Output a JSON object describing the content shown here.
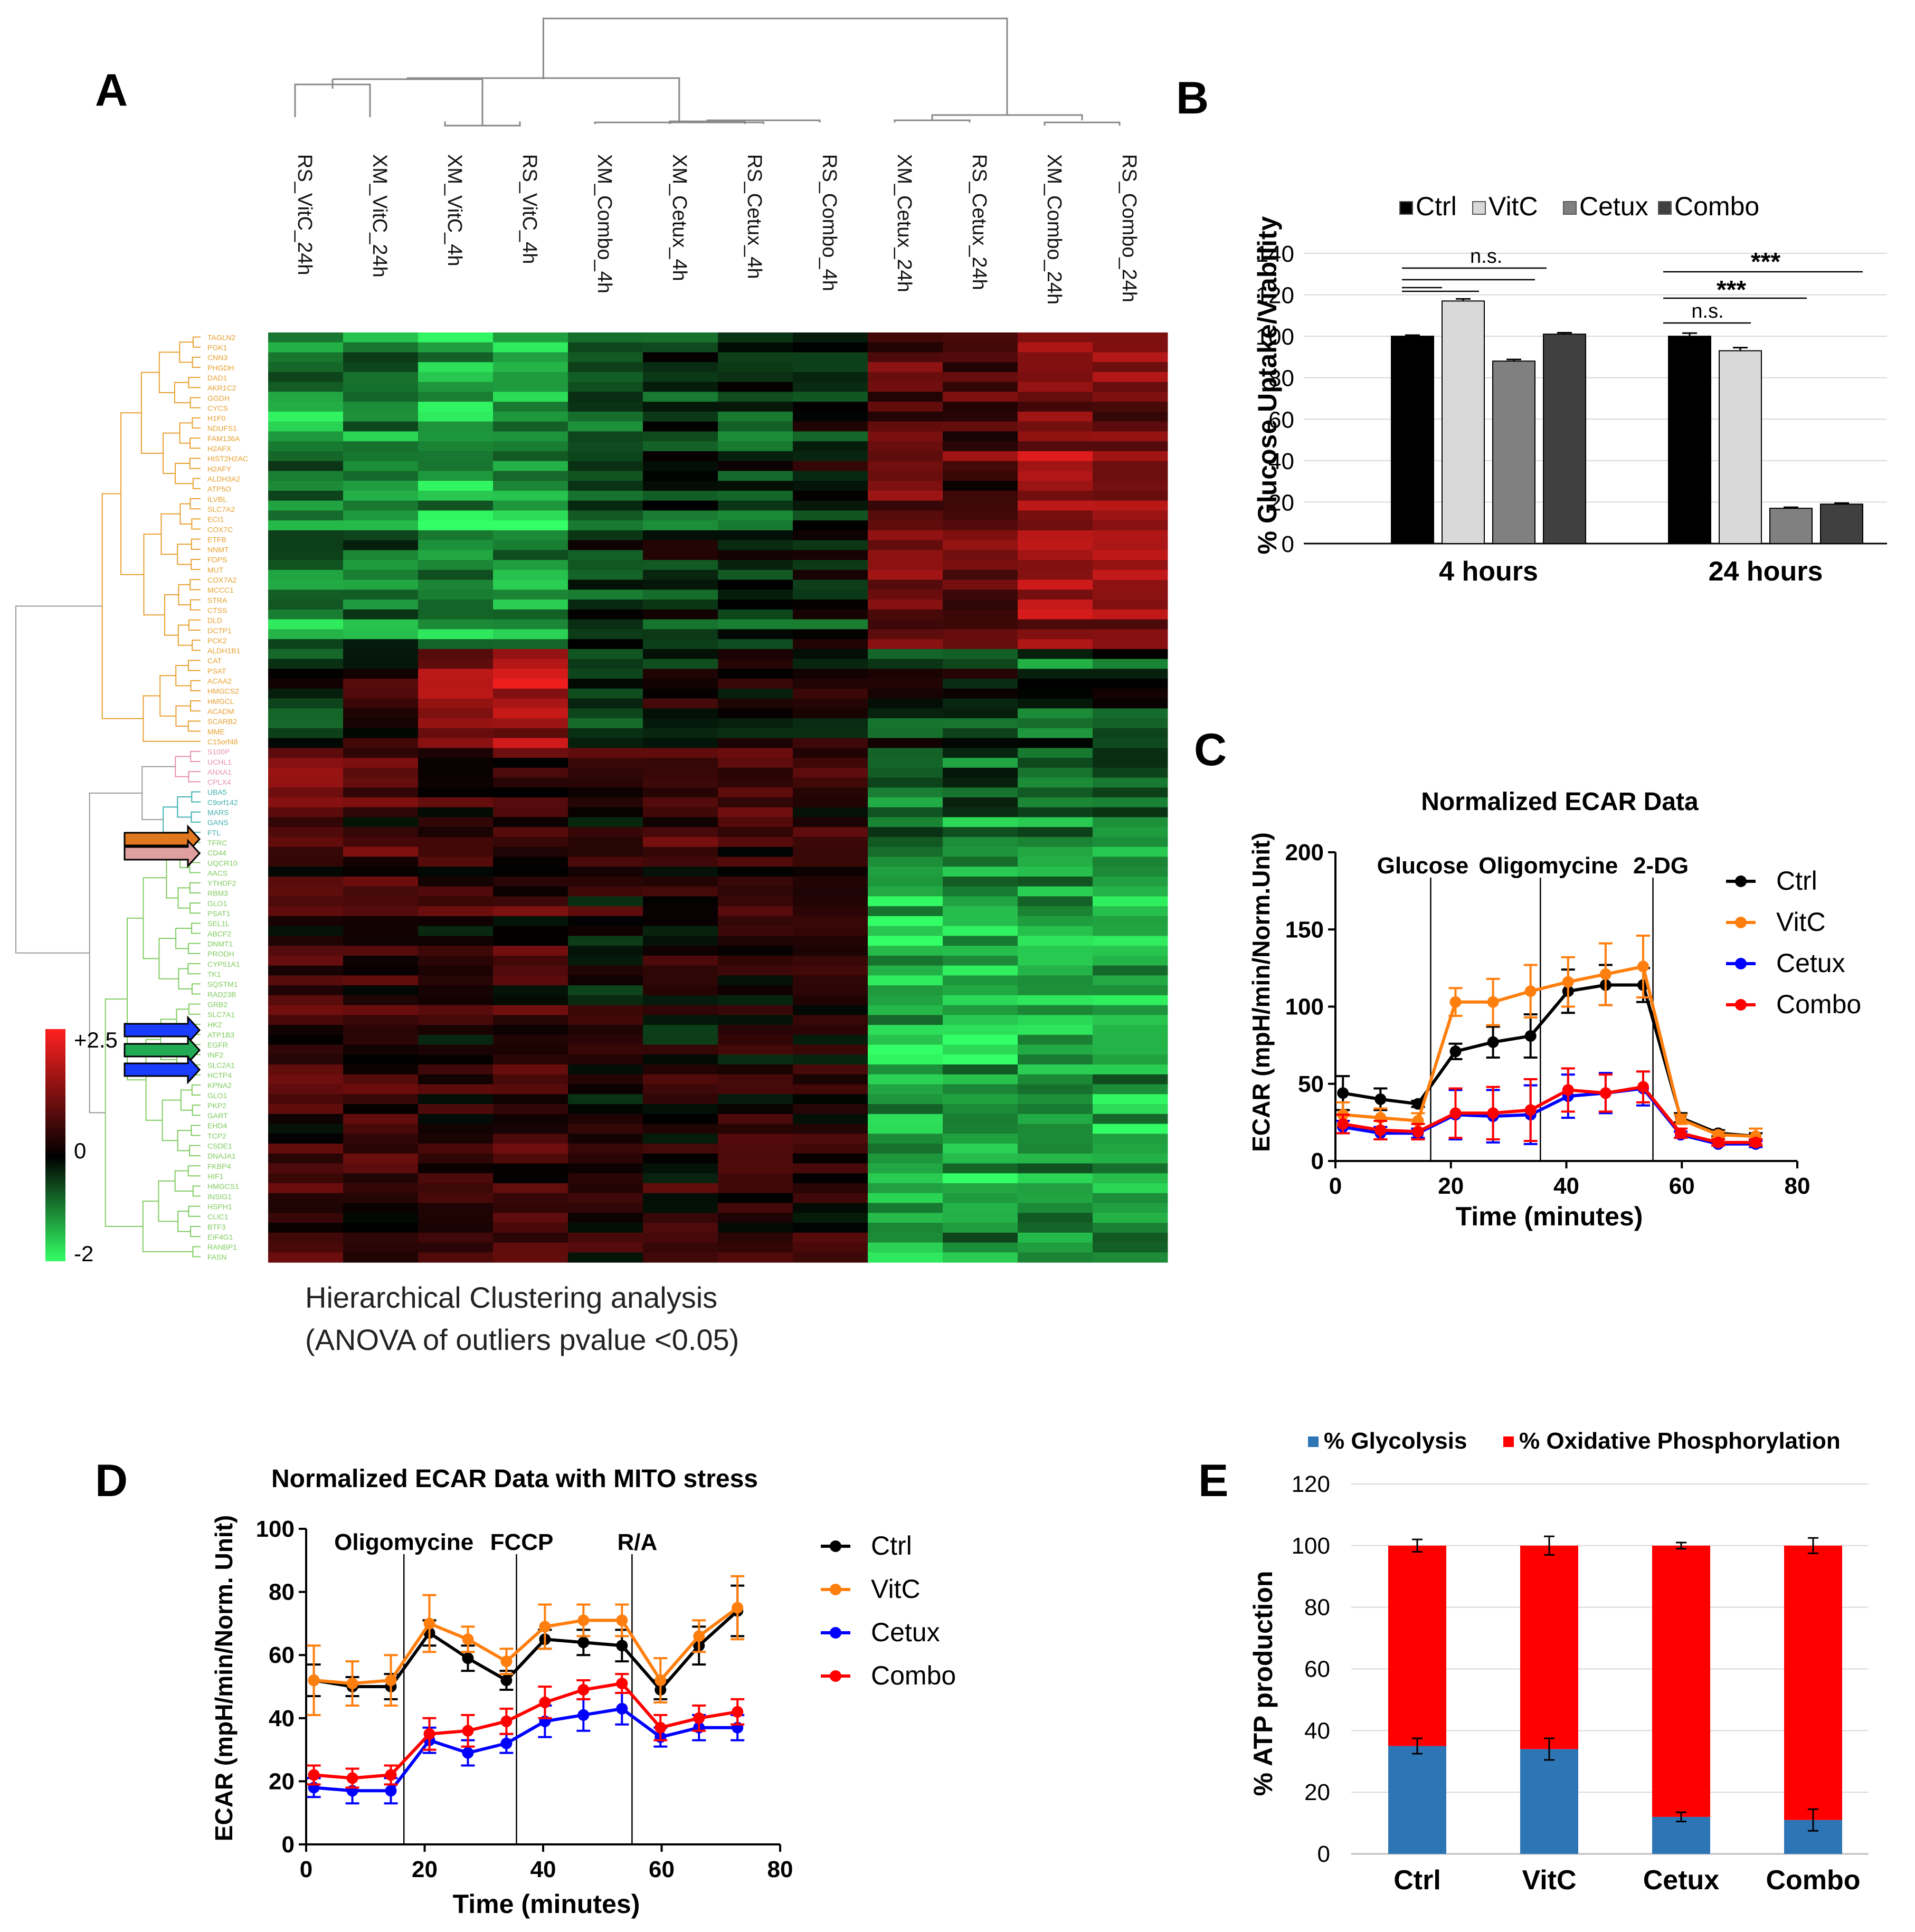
{
  "panels": {
    "A": {
      "letter": "A",
      "caption_line1": "Hierarchical Clustering analysis",
      "caption_line2": "(ANOVA of outliers  pvalue  <0.05)",
      "columns": [
        "RS_VitC_24h",
        "XM_VitC_24h",
        "XM_VitC_4h",
        "RS_VitC_4h",
        "XM_Combo_4h",
        "XM_Cetux_4h",
        "RS_Cetux_4h",
        "RS_Combo_4h",
        "XM_Cetux_24h",
        "RS_Cetux_24h",
        "XM_Combo_24h",
        "RS_Combo_24h"
      ],
      "scale_labels": {
        "max": "+2.5",
        "mid": "0",
        "min": "-2"
      },
      "colors": {
        "high": "#ff2020",
        "mid": "#000000",
        "low": "#33ff66"
      },
      "gene_label_colors": [
        "#e8a030",
        "#e890b0",
        "#40b0b0",
        "#80cc60"
      ],
      "arrow_colors": [
        "#e07820",
        "#e0a0a0",
        "#1a3cff",
        "#22aa55"
      ]
    },
    "B": {
      "letter": "B",
      "legend": [
        "Ctrl",
        "VitC",
        "Cetux",
        "Combo"
      ],
      "colors": [
        "#000000",
        "#d9d9d9",
        "#808080",
        "#404040"
      ],
      "ylabel": "% Glucose Uptake/Viability",
      "yticks": [
        "0",
        "20",
        "40",
        "60",
        "80",
        "100",
        "120",
        "140"
      ],
      "groups": [
        "4 hours",
        "24 hours"
      ],
      "sig_labels": [
        "n.s.",
        "***",
        "***",
        "n.s."
      ]
    },
    "C": {
      "letter": "C",
      "title": "Normalized ECAR Data",
      "ylabel": "ECAR (mpH/min/Norm.Unit)",
      "xlabel": "Time (minutes)",
      "yticks": [
        "0",
        "50",
        "100",
        "150",
        "200"
      ],
      "xticks": [
        "0",
        "20",
        "40",
        "60",
        "80"
      ],
      "injections": [
        "Glucose",
        "Oligomycine",
        "2-DG"
      ],
      "legend": [
        "Ctrl",
        "VitC",
        "Cetux",
        "Combo"
      ]
    },
    "D": {
      "letter": "D",
      "title": "Normalized ECAR Data with MITO stress",
      "ylabel": "ECAR (mpH/min/Norm. Unit)",
      "xlabel": "Time (minutes)",
      "yticks": [
        "0",
        "20",
        "40",
        "60",
        "80",
        "100"
      ],
      "xticks": [
        "0",
        "20",
        "40",
        "60",
        "80"
      ],
      "injections": [
        "Oligomycine",
        "FCCP",
        "R/A"
      ],
      "legend": [
        "Ctrl",
        "VitC",
        "Cetux",
        "Combo"
      ]
    },
    "E": {
      "letter": "E",
      "legend": [
        "% Glycolysis",
        "% Oxidative Phosphorylation"
      ],
      "colors": [
        "#2e75b6",
        "#ff0000"
      ],
      "ylabel": "% ATP production",
      "yticks": [
        "0",
        "20",
        "40",
        "60",
        "80",
        "100",
        "120"
      ],
      "categories": [
        "Ctrl",
        "VitC",
        "Cetux",
        "Combo"
      ]
    }
  },
  "chart_data": [
    {
      "panel": "A",
      "type": "heatmap",
      "x": [
        "RS_VitC_24h",
        "XM_VitC_24h",
        "XM_VitC_4h",
        "RS_VitC_4h",
        "XM_Combo_4h",
        "XM_Cetux_4h",
        "RS_Cetux_4h",
        "RS_Combo_4h",
        "XM_Cetux_24h",
        "RS_Cetux_24h",
        "XM_Combo_24h",
        "RS_Combo_24h"
      ],
      "vmin": -2,
      "vmax": 2.5,
      "row_groups": [
        {
          "rows": 32,
          "profile": [
            -1.1,
            -1.0,
            -1.3,
            -1.2,
            -0.6,
            -0.4,
            -0.4,
            -0.2,
            0.9,
            0.8,
            1.4,
            1.2
          ]
        },
        {
          "rows": 10,
          "profile": [
            -0.4,
            0.3,
            1.3,
            1.6,
            -0.5,
            0.2,
            0.1,
            0.3,
            -0.3,
            -0.2,
            -0.6,
            -0.4
          ]
        },
        {
          "rows": 10,
          "profile": [
            1.1,
            0.6,
            0.2,
            0.4,
            0.2,
            0.4,
            0.7,
            0.3,
            -1.1,
            -0.9,
            -0.9,
            -1.0
          ]
        },
        {
          "rows": 42,
          "profile": [
            0.5,
            0.5,
            0.4,
            0.5,
            0.2,
            0.3,
            0.3,
            0.3,
            -1.4,
            -1.3,
            -1.2,
            -1.3
          ]
        }
      ]
    },
    {
      "panel": "B",
      "type": "bar",
      "title": "",
      "xlabel": "",
      "ylabel": "% Glucose Uptake/Viability",
      "ylim": [
        0,
        140
      ],
      "categories": [
        "4 hours",
        "24 hours"
      ],
      "series": [
        {
          "name": "Ctrl",
          "values": [
            100,
            100
          ],
          "errors": [
            0.5,
            1.5
          ]
        },
        {
          "name": "VitC",
          "values": [
            117,
            93
          ],
          "errors": [
            1,
            1.5
          ]
        },
        {
          "name": "Cetux",
          "values": [
            88,
            17
          ],
          "errors": [
            0.8,
            0.5
          ]
        },
        {
          "name": "Combo",
          "values": [
            101,
            19
          ],
          "errors": [
            0.7,
            0.5
          ]
        }
      ]
    },
    {
      "panel": "C",
      "type": "line",
      "title": "Normalized ECAR Data",
      "xlabel": "Time (minutes)",
      "ylabel": "ECAR (mpH/min/Norm.Unit)",
      "xlim": [
        0,
        80
      ],
      "ylim": [
        0,
        200
      ],
      "x": [
        1.3,
        7.8,
        14.3,
        20.8,
        27.3,
        33.8,
        40.3,
        46.8,
        53.3,
        59.8,
        66.3,
        72.8
      ],
      "injection_times": [
        16.5,
        35.5,
        55
      ],
      "series": [
        {
          "name": "Ctrl",
          "color": "#000000",
          "values": [
            44,
            40,
            37,
            71,
            77,
            81,
            110,
            114,
            114,
            28,
            18,
            16
          ],
          "errors": [
            11,
            7,
            2,
            5,
            10,
            14,
            14,
            13,
            11,
            3,
            2,
            2
          ]
        },
        {
          "name": "VitC",
          "color": "#ff7f0e",
          "values": [
            30,
            28,
            26,
            103,
            103,
            110,
            116,
            121,
            126,
            27,
            17,
            16
          ],
          "errors": [
            8,
            6,
            5,
            9,
            15,
            17,
            16,
            20,
            20,
            3,
            2,
            5
          ]
        },
        {
          "name": "Cetux",
          "color": "#0000ff",
          "values": [
            22,
            18,
            18,
            30,
            29,
            30,
            42,
            44,
            47,
            17,
            11,
            11
          ],
          "errors": [
            4,
            4,
            3,
            16,
            17,
            19,
            14,
            13,
            11,
            2,
            1,
            2
          ]
        },
        {
          "name": "Combo",
          "color": "#ff0000",
          "values": [
            24,
            20,
            19,
            31,
            31,
            33,
            46,
            44,
            48,
            18,
            12,
            12
          ],
          "errors": [
            6,
            6,
            5,
            16,
            17,
            20,
            14,
            12,
            10,
            3,
            2,
            2
          ]
        }
      ]
    },
    {
      "panel": "D",
      "type": "line",
      "title": "Normalized ECAR Data with MITO stress",
      "xlabel": "Time (minutes)",
      "ylabel": "ECAR (mpH/min/Norm. Unit)",
      "xlim": [
        0,
        80
      ],
      "ylim": [
        0,
        100
      ],
      "x": [
        1.3,
        7.8,
        14.3,
        20.8,
        27.3,
        33.8,
        40.3,
        46.8,
        53.3,
        59.8,
        66.3,
        72.8
      ],
      "injection_times": [
        16.5,
        35.5,
        55
      ],
      "series": [
        {
          "name": "Ctrl",
          "color": "#000000",
          "values": [
            52,
            50,
            50,
            67,
            59,
            52,
            65,
            64,
            63,
            49,
            63,
            74
          ],
          "errors": [
            5,
            3,
            4,
            4,
            4,
            3,
            3,
            4,
            5,
            3,
            6,
            8
          ]
        },
        {
          "name": "VitC",
          "color": "#ff7f0e",
          "values": [
            52,
            51,
            52,
            70,
            65,
            58,
            69,
            71,
            71,
            52,
            66,
            75
          ],
          "errors": [
            11,
            7,
            8,
            9,
            4,
            4,
            7,
            5,
            5,
            7,
            5,
            10
          ]
        },
        {
          "name": "Cetux",
          "color": "#0000ff",
          "values": [
            18,
            17,
            17,
            33,
            29,
            32,
            39,
            41,
            43,
            34,
            37,
            37
          ],
          "errors": [
            3,
            4,
            4,
            4,
            4,
            3,
            5,
            5,
            5,
            3,
            4,
            4
          ]
        },
        {
          "name": "Combo",
          "color": "#ff0000",
          "values": [
            22,
            21,
            22,
            35,
            36,
            39,
            45,
            49,
            51,
            37,
            40,
            42
          ],
          "errors": [
            3,
            3,
            3,
            5,
            5,
            4,
            5,
            3,
            3,
            4,
            4,
            4
          ]
        }
      ]
    },
    {
      "panel": "E",
      "type": "bar",
      "stacked": true,
      "title": "",
      "xlabel": "",
      "ylabel": "% ATP production",
      "ylim": [
        0,
        120
      ],
      "categories": [
        "Ctrl",
        "VitC",
        "Cetux",
        "Combo"
      ],
      "series": [
        {
          "name": "% Glycolysis",
          "values": [
            35,
            34,
            12,
            11
          ],
          "errors": [
            2.5,
            3.5,
            1.5,
            3.5
          ]
        },
        {
          "name": "% Oxidative Phosphorylation",
          "values": [
            65,
            66,
            88,
            89
          ],
          "errors": [
            2,
            3,
            1,
            2.5
          ]
        }
      ]
    }
  ]
}
